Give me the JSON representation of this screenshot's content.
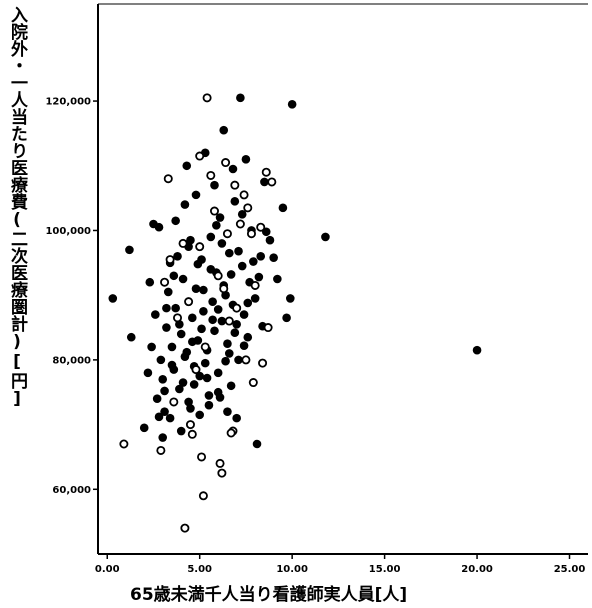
{
  "chart_data": {
    "type": "scatter",
    "title": "",
    "xlabel": "65歳未満千人当り看護師実人員[人]",
    "ylabel": "入院外・一人当たり医療費(二次医療圏計)[円]",
    "xlim": [
      -0.5,
      26
    ],
    "ylim": [
      50000,
      135000
    ],
    "x_ticks": [
      0,
      5,
      10,
      15,
      20,
      25
    ],
    "x_tick_labels": [
      "0.00",
      "5.00",
      "10.00",
      "15.00",
      "20.00",
      "25.00"
    ],
    "y_ticks": [
      60000,
      80000,
      100000,
      120000
    ],
    "y_tick_labels": [
      "60,000",
      "80,000",
      "100,000",
      "120,000"
    ],
    "grid": false,
    "legend": "none",
    "marker_color": "#000000",
    "series": [
      {
        "marker": "filled-circle",
        "points": [
          [
            0.3,
            89500
          ],
          [
            1.2,
            97000
          ],
          [
            1.3,
            83500
          ],
          [
            2.0,
            69500
          ],
          [
            2.3,
            92000
          ],
          [
            2.5,
            101000
          ],
          [
            2.8,
            100500
          ],
          [
            2.6,
            87000
          ],
          [
            2.9,
            80000
          ],
          [
            2.7,
            74000
          ],
          [
            3.0,
            77000
          ],
          [
            3.1,
            72000
          ],
          [
            3.2,
            85000
          ],
          [
            3.3,
            90500
          ],
          [
            3.4,
            95000
          ],
          [
            3.5,
            82000
          ],
          [
            3.6,
            78500
          ],
          [
            3.7,
            88000
          ],
          [
            3.8,
            96000
          ],
          [
            3.9,
            75500
          ],
          [
            4.0,
            84000
          ],
          [
            4.1,
            92500
          ],
          [
            4.2,
            80500
          ],
          [
            4.3,
            110000
          ],
          [
            4.4,
            73500
          ],
          [
            4.5,
            98500
          ],
          [
            4.6,
            86500
          ],
          [
            4.7,
            79000
          ],
          [
            4.8,
            91000
          ],
          [
            4.9,
            83000
          ],
          [
            5.0,
            77500
          ],
          [
            5.1,
            95500
          ],
          [
            5.2,
            87500
          ],
          [
            5.3,
            112000
          ],
          [
            5.4,
            81500
          ],
          [
            5.5,
            74500
          ],
          [
            5.6,
            99000
          ],
          [
            5.7,
            89000
          ],
          [
            5.8,
            84500
          ],
          [
            5.9,
            93500
          ],
          [
            6.0,
            78000
          ],
          [
            6.1,
            102000
          ],
          [
            6.2,
            86000
          ],
          [
            6.3,
            115500
          ],
          [
            6.4,
            90000
          ],
          [
            6.5,
            82500
          ],
          [
            6.6,
            96500
          ],
          [
            6.7,
            76000
          ],
          [
            6.8,
            88500
          ],
          [
            6.9,
            104500
          ],
          [
            7.0,
            85500
          ],
          [
            7.1,
            80000
          ],
          [
            7.2,
            120500
          ],
          [
            7.3,
            94500
          ],
          [
            7.4,
            87000
          ],
          [
            7.5,
            111000
          ],
          [
            7.6,
            83500
          ],
          [
            7.7,
            92000
          ],
          [
            7.8,
            100000
          ],
          [
            8.0,
            89500
          ],
          [
            8.1,
            67000
          ],
          [
            8.3,
            96000
          ],
          [
            8.5,
            107500
          ],
          [
            8.8,
            98500
          ],
          [
            9.2,
            92500
          ],
          [
            9.5,
            103500
          ],
          [
            9.7,
            86500
          ],
          [
            9.9,
            89500
          ],
          [
            10.0,
            119500
          ],
          [
            11.8,
            99000
          ],
          [
            20.0,
            81500
          ],
          [
            3.0,
            68000
          ],
          [
            3.4,
            71000
          ],
          [
            4.0,
            69000
          ],
          [
            4.5,
            72500
          ],
          [
            5.0,
            71500
          ],
          [
            5.5,
            73000
          ],
          [
            6.0,
            75000
          ],
          [
            6.5,
            72000
          ],
          [
            7.0,
            71000
          ],
          [
            4.2,
            104000
          ],
          [
            5.8,
            107000
          ],
          [
            6.8,
            109500
          ],
          [
            3.7,
            101500
          ],
          [
            4.8,
            105500
          ],
          [
            6.2,
            98000
          ],
          [
            7.3,
            102500
          ],
          [
            4.1,
            76500
          ],
          [
            5.3,
            79500
          ],
          [
            6.6,
            81000
          ],
          [
            3.2,
            88000
          ],
          [
            3.6,
            93000
          ],
          [
            4.4,
            97500
          ],
          [
            5.6,
            94000
          ],
          [
            6.3,
            91500
          ],
          [
            7.1,
            96800
          ],
          [
            2.4,
            82000
          ],
          [
            2.2,
            78000
          ],
          [
            3.9,
            85500
          ],
          [
            5.2,
            90800
          ],
          [
            6.0,
            87800
          ],
          [
            6.9,
            84200
          ],
          [
            7.6,
            88800
          ],
          [
            8.2,
            92800
          ],
          [
            4.6,
            82800
          ],
          [
            5.7,
            86200
          ],
          [
            3.5,
            79200
          ],
          [
            4.3,
            81200
          ],
          [
            5.1,
            84800
          ],
          [
            6.4,
            79800
          ],
          [
            7.4,
            82200
          ],
          [
            8.4,
            85200
          ],
          [
            4.7,
            76200
          ],
          [
            5.4,
            77200
          ],
          [
            6.1,
            74200
          ],
          [
            3.1,
            75200
          ],
          [
            2.8,
            71200
          ],
          [
            4.9,
            94800
          ],
          [
            5.9,
            100800
          ],
          [
            6.7,
            93200
          ],
          [
            7.9,
            95200
          ],
          [
            8.6,
            99800
          ],
          [
            9.0,
            95800
          ]
        ]
      },
      {
        "marker": "open-circle",
        "points": [
          [
            0.9,
            67000
          ],
          [
            2.9,
            66000
          ],
          [
            3.3,
            108000
          ],
          [
            3.1,
            92000
          ],
          [
            3.4,
            95500
          ],
          [
            4.2,
            54000
          ],
          [
            4.5,
            70000
          ],
          [
            4.6,
            68500
          ],
          [
            5.1,
            65000
          ],
          [
            5.2,
            59000
          ],
          [
            5.4,
            120500
          ],
          [
            6.1,
            64000
          ],
          [
            6.2,
            62500
          ],
          [
            6.8,
            69000
          ],
          [
            6.7,
            68700
          ],
          [
            7.9,
            76500
          ],
          [
            5.0,
            111500
          ],
          [
            5.6,
            108500
          ],
          [
            6.4,
            110500
          ],
          [
            6.9,
            107000
          ],
          [
            7.2,
            101000
          ],
          [
            7.4,
            105500
          ],
          [
            7.8,
            99500
          ],
          [
            8.3,
            100500
          ],
          [
            8.6,
            109000
          ],
          [
            8.9,
            107500
          ],
          [
            4.4,
            89000
          ],
          [
            5.0,
            97500
          ],
          [
            5.8,
            103000
          ],
          [
            6.5,
            99500
          ],
          [
            7.6,
            103500
          ],
          [
            8.0,
            91500
          ],
          [
            8.7,
            85000
          ],
          [
            4.1,
            98000
          ],
          [
            3.8,
            86500
          ],
          [
            6.0,
            93000
          ],
          [
            7.0,
            88000
          ],
          [
            8.4,
            79500
          ],
          [
            5.3,
            82000
          ],
          [
            6.3,
            91000
          ],
          [
            7.5,
            80000
          ],
          [
            3.6,
            73500
          ],
          [
            4.8,
            78500
          ],
          [
            6.6,
            86000
          ]
        ]
      }
    ]
  }
}
